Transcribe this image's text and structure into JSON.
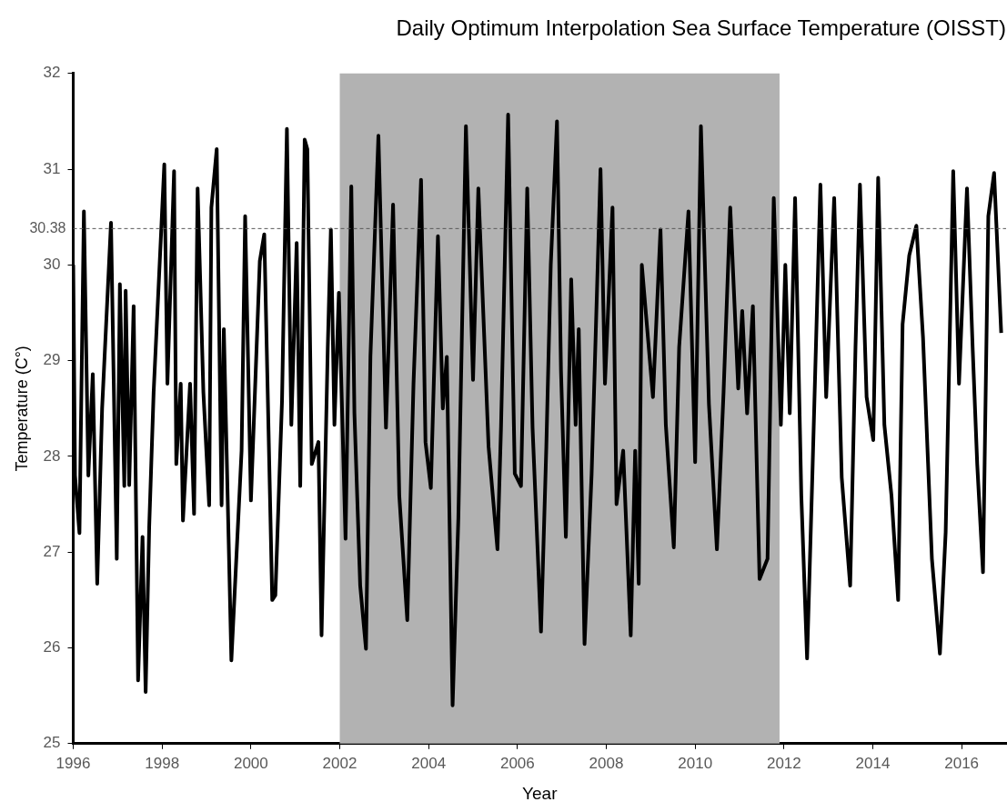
{
  "chart_data": {
    "type": "line",
    "title": "Daily Optimum Interpolation Sea Surface Temperature (OISST)",
    "xlabel": "Year",
    "ylabel": "Temperature (C°)",
    "xlim": [
      1996,
      2017
    ],
    "xticks": [
      1996,
      1998,
      2000,
      2002,
      2004,
      2006,
      2008,
      2010,
      2012,
      2014,
      2016
    ],
    "ylim": [
      25,
      32
    ],
    "yticks": [
      25,
      26,
      27,
      28,
      29,
      30,
      31,
      32
    ],
    "grid": false,
    "legend": false,
    "marker": "none",
    "line_style": "solid",
    "ref_lines": [
      {
        "axis": "y",
        "value": 30.38,
        "label": "30.38",
        "color": "#595959",
        "line_style": "dashed"
      }
    ],
    "bands": [
      {
        "axis": "x",
        "from": 2002,
        "to": 2011.9,
        "color": "#b2b2b2"
      }
    ],
    "series": [
      {
        "color": "#000000",
        "x": [
          1996.0,
          1996.04,
          1996.14,
          1996.24,
          1996.34,
          1996.44,
          1996.54,
          1996.65,
          1996.85,
          1996.98,
          1997.05,
          1997.15,
          1997.18,
          1997.26,
          1997.36,
          1997.46,
          1997.56,
          1997.63,
          1997.71,
          1997.81,
          1998.05,
          1998.12,
          1998.27,
          1998.32,
          1998.42,
          1998.47,
          1998.63,
          1998.72,
          1998.8,
          1998.93,
          1999.06,
          1999.11,
          1999.23,
          1999.34,
          1999.39,
          1999.56,
          1999.79,
          1999.87,
          2000.0,
          2000.2,
          2000.3,
          2000.48,
          2000.55,
          2000.7,
          2000.81,
          2000.91,
          2001.03,
          2001.11,
          2001.21,
          2001.27,
          2001.37,
          2001.52,
          2001.59,
          2001.73,
          2001.8,
          2001.88,
          2001.98,
          2002.13,
          2002.26,
          2002.33,
          2002.46,
          2002.59,
          2002.69,
          2002.87,
          2003.04,
          2003.2,
          2003.34,
          2003.52,
          2003.66,
          2003.83,
          2003.93,
          2004.05,
          2004.21,
          2004.32,
          2004.41,
          2004.54,
          2004.67,
          2004.84,
          2005.0,
          2005.12,
          2005.35,
          2005.55,
          2005.63,
          2005.79,
          2005.94,
          2006.08,
          2006.22,
          2006.34,
          2006.53,
          2006.65,
          2006.75,
          2006.89,
          2006.98,
          2007.09,
          2007.21,
          2007.31,
          2007.38,
          2007.51,
          2007.67,
          2007.87,
          2007.97,
          2008.14,
          2008.23,
          2008.38,
          2008.55,
          2008.65,
          2008.73,
          2008.8,
          2009.05,
          2009.22,
          2009.34,
          2009.52,
          2009.64,
          2009.85,
          2010.0,
          2010.13,
          2010.31,
          2010.49,
          2010.64,
          2010.79,
          2010.97,
          2011.06,
          2011.17,
          2011.3,
          2011.45,
          2011.63,
          2011.77,
          2011.93,
          2012.03,
          2012.13,
          2012.25,
          2012.39,
          2012.52,
          2012.64,
          2012.82,
          2012.95,
          2013.13,
          2013.3,
          2013.49,
          2013.61,
          2013.71,
          2013.86,
          2014.01,
          2014.12,
          2014.26,
          2014.42,
          2014.57,
          2014.67,
          2014.82,
          2014.98,
          2015.13,
          2015.33,
          2015.51,
          2015.64,
          2015.81,
          2015.94,
          2016.12,
          2016.25,
          2016.35,
          2016.48,
          2016.6,
          2016.73,
          2016.89
        ],
        "values": [
          30.0,
          27.8,
          27.2,
          30.56,
          27.8,
          28.86,
          26.67,
          28.5,
          30.44,
          26.93,
          29.8,
          27.69,
          29.73,
          27.7,
          29.57,
          25.66,
          27.16,
          25.54,
          27.26,
          28.67,
          31.05,
          28.76,
          30.98,
          27.92,
          28.76,
          27.33,
          28.76,
          27.4,
          30.8,
          28.67,
          27.49,
          30.6,
          31.21,
          27.49,
          29.33,
          25.87,
          28.06,
          30.51,
          27.54,
          30.04,
          30.32,
          26.5,
          26.55,
          28.58,
          31.42,
          28.33,
          30.23,
          27.69,
          31.31,
          31.21,
          27.92,
          28.15,
          26.13,
          29.14,
          30.37,
          28.33,
          29.71,
          27.14,
          30.82,
          28.45,
          26.65,
          25.99,
          29.04,
          31.35,
          28.3,
          30.63,
          27.59,
          26.29,
          28.76,
          30.89,
          28.15,
          27.67,
          30.3,
          28.5,
          29.04,
          25.4,
          27.36,
          31.45,
          28.8,
          30.8,
          28.1,
          27.03,
          28.3,
          31.57,
          27.82,
          27.69,
          30.8,
          28.3,
          26.17,
          28.1,
          30.0,
          31.5,
          28.9,
          27.16,
          29.85,
          28.33,
          29.33,
          26.04,
          27.82,
          31.0,
          28.76,
          30.6,
          27.5,
          28.06,
          26.13,
          28.06,
          26.67,
          30.0,
          28.62,
          30.37,
          28.33,
          27.05,
          29.14,
          30.56,
          27.94,
          31.45,
          28.55,
          27.03,
          28.67,
          30.6,
          28.71,
          29.52,
          28.45,
          29.57,
          26.72,
          26.93,
          30.7,
          28.33,
          30.0,
          28.45,
          30.7,
          27.59,
          25.89,
          27.82,
          30.84,
          28.62,
          30.7,
          27.78,
          26.65,
          29.14,
          30.84,
          28.62,
          28.17,
          30.91,
          28.33,
          27.59,
          26.5,
          29.38,
          30.1,
          30.41,
          29.24,
          26.93,
          25.94,
          27.21,
          30.98,
          28.76,
          30.8,
          29.1,
          27.92,
          26.79,
          30.51,
          30.96,
          29.29
        ]
      }
    ]
  }
}
